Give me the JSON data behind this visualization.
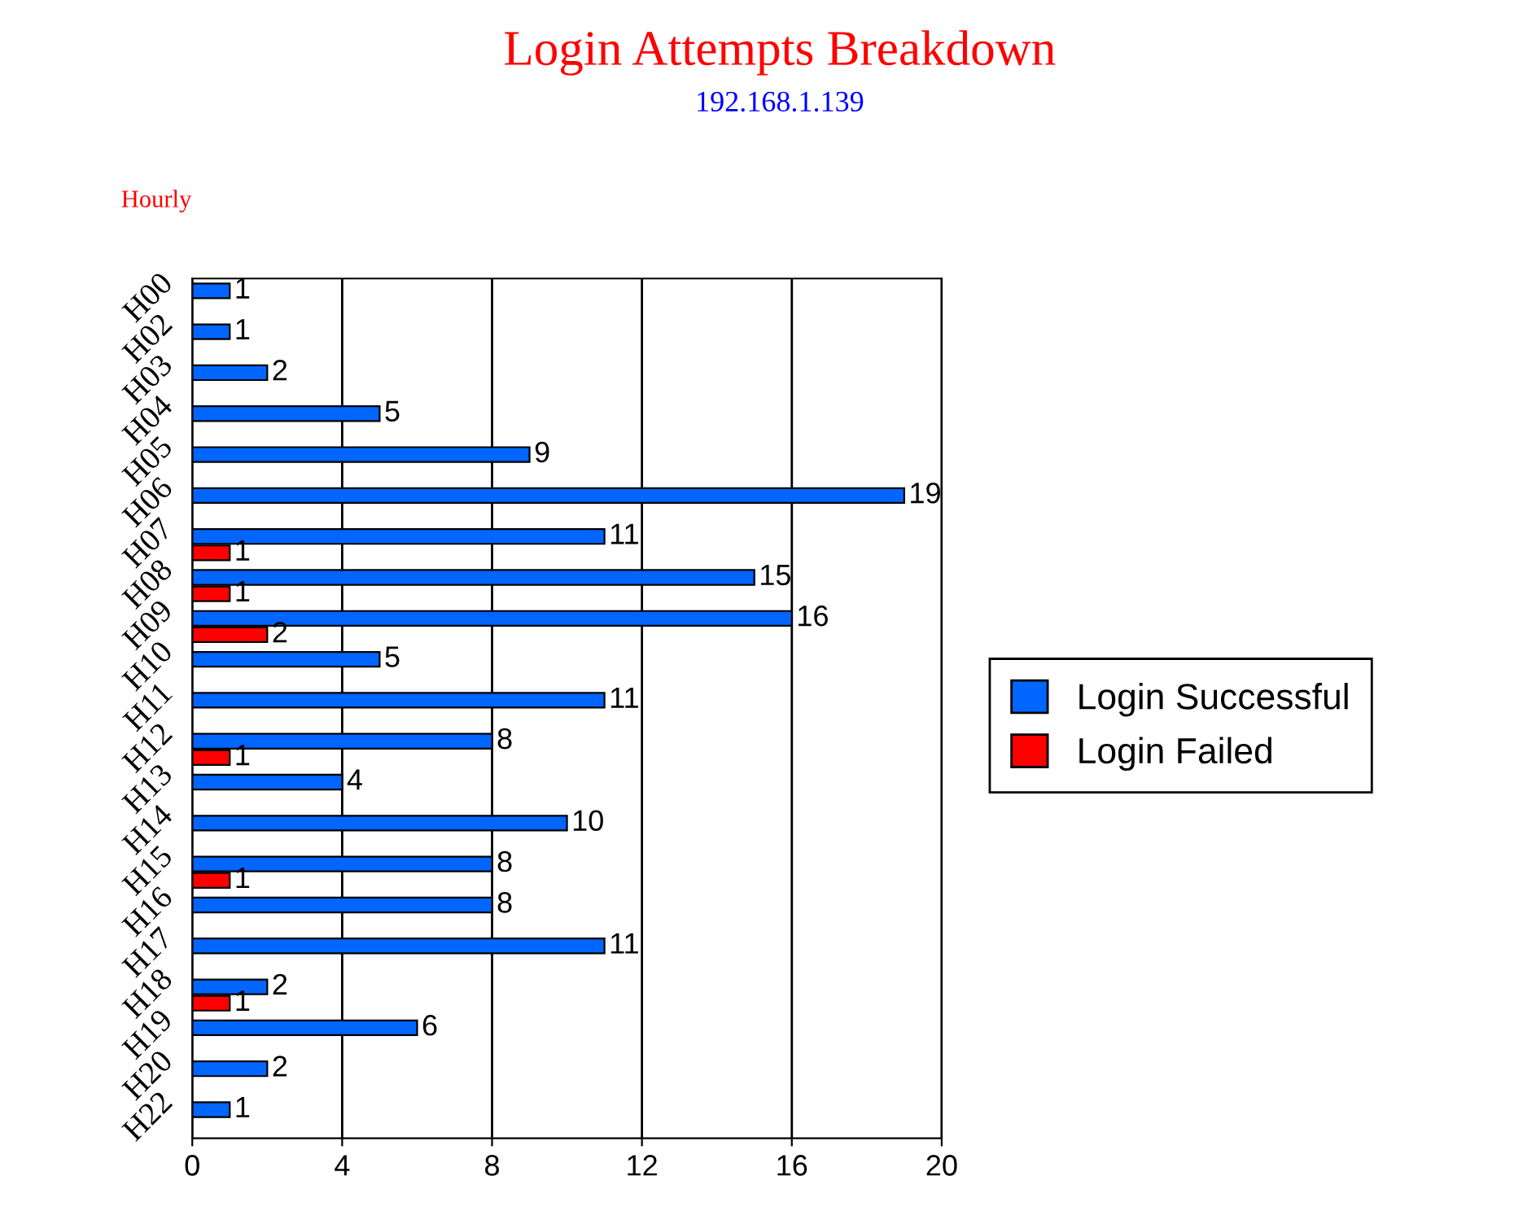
{
  "chart_data": {
    "type": "bar",
    "orientation": "horizontal",
    "title": "Login Attempts Breakdown",
    "subtitle": "192.168.1.139",
    "ylabel": "Hourly",
    "categories": [
      "H00",
      "H02",
      "H03",
      "H04",
      "H05",
      "H06",
      "H07",
      "H08",
      "H09",
      "H10",
      "H11",
      "H12",
      "H13",
      "H14",
      "H15",
      "H16",
      "H17",
      "H18",
      "H19",
      "H20",
      "H22"
    ],
    "series": [
      {
        "name": "Login Successful",
        "color": "#0066ff",
        "values": [
          1,
          1,
          2,
          5,
          9,
          19,
          11,
          15,
          16,
          5,
          11,
          8,
          4,
          10,
          8,
          8,
          11,
          2,
          6,
          2,
          1
        ]
      },
      {
        "name": "Login Failed",
        "color": "#ff0000",
        "values": [
          null,
          null,
          null,
          null,
          null,
          null,
          1,
          1,
          2,
          null,
          null,
          1,
          null,
          null,
          1,
          null,
          null,
          1,
          null,
          null,
          null
        ]
      }
    ],
    "xlim": [
      0,
      20
    ],
    "xticks": [
      0,
      4,
      8,
      12,
      16,
      20
    ],
    "grid": "x",
    "legend": "right",
    "data_labels": true
  }
}
